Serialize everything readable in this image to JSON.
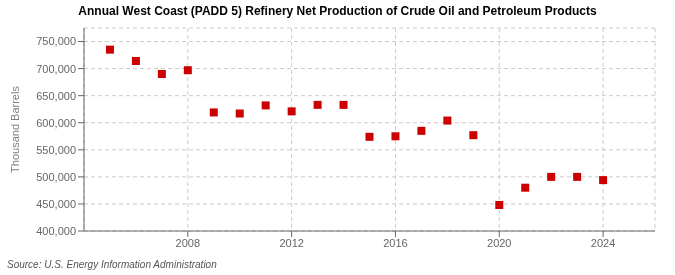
{
  "chart_data": {
    "type": "scatter",
    "title": "Annual West Coast (PADD 5) Refinery Net Production of Crude Oil and Petroleum Products",
    "ylabel": "Thousand Barrels",
    "source": "Source: U.S. Energy Information Administration",
    "x": [
      2005,
      2006,
      2007,
      2008,
      2009,
      2010,
      2011,
      2012,
      2013,
      2014,
      2015,
      2016,
      2017,
      2018,
      2019,
      2020,
      2021,
      2022,
      2023,
      2024
    ],
    "values": [
      735000,
      714000,
      690000,
      697000,
      619000,
      617000,
      632000,
      621000,
      633000,
      633000,
      574000,
      575000,
      585000,
      604000,
      577000,
      448000,
      480000,
      500000,
      500000,
      494000
    ],
    "color": "#cc0000",
    "marker": "square",
    "xlim": [
      2004,
      2026
    ],
    "xticks": [
      2008,
      2012,
      2016,
      2020,
      2024
    ],
    "ylim": [
      400000,
      775000
    ],
    "yticks": [
      {
        "value": 400000,
        "label": "400,000"
      },
      {
        "value": 450000,
        "label": "450,000"
      },
      {
        "value": 500000,
        "label": "500,000"
      },
      {
        "value": 550000,
        "label": "550,000"
      },
      {
        "value": 600000,
        "label": "600,000"
      },
      {
        "value": 650000,
        "label": "650,000"
      },
      {
        "value": 700000,
        "label": "700,000"
      },
      {
        "value": 750000,
        "label": "750,000"
      }
    ],
    "grid": true
  }
}
